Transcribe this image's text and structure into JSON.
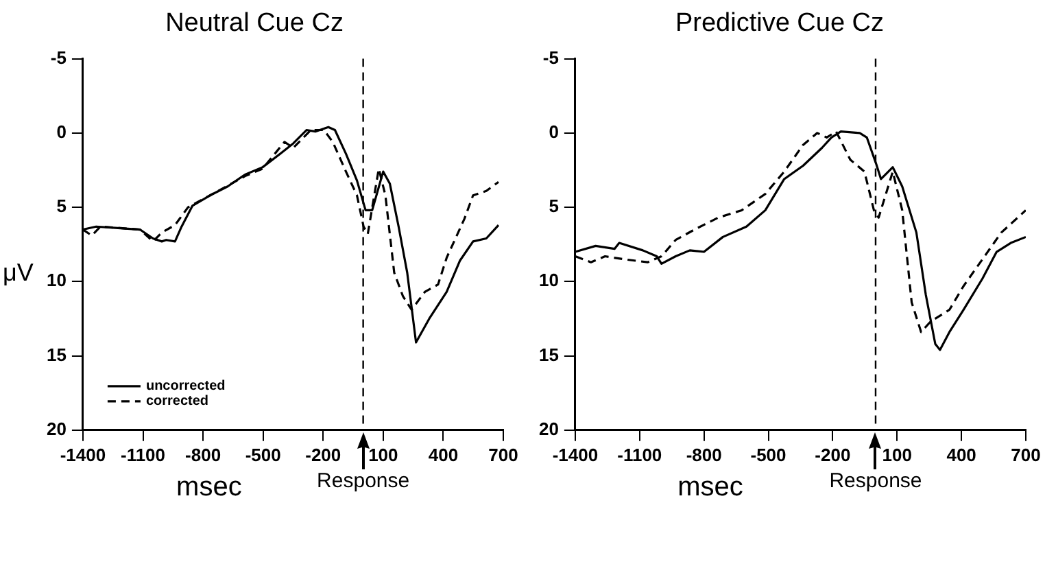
{
  "chart_data": [
    {
      "type": "line",
      "title": "Neutral Cue Cz",
      "xlabel": "msec",
      "ylabel": "μV",
      "xlim": [
        -1400,
        700
      ],
      "xticks": [
        -1400,
        -1100,
        -800,
        -500,
        -200,
        100,
        400,
        700
      ],
      "ylim": [
        20,
        -5
      ],
      "yticks": [
        -5,
        0,
        5,
        10,
        15,
        20
      ],
      "grid": false,
      "marker": "none",
      "legend": "bottom left",
      "ref_lines": [
        {
          "axis": "x",
          "value": 0,
          "label": "Response",
          "line_style": "dashed",
          "color": "#000000"
        }
      ],
      "series": [
        {
          "name": "uncorrected",
          "color": "#000000",
          "line_style": "solid",
          "x": [
            -1400,
            -1334,
            -1225,
            -1115,
            -1050,
            -1006,
            -984,
            -940,
            -907,
            -853,
            -765,
            -677,
            -590,
            -502,
            -415,
            -349,
            -283,
            -239,
            -174,
            -141,
            -86,
            -31,
            12,
            45,
            100,
            133,
            177,
            220,
            264,
            330,
            417,
            483,
            549,
            615,
            676
          ],
          "values": [
            6.5,
            6.3,
            6.4,
            6.5,
            7.1,
            7.3,
            7.2,
            7.3,
            6.3,
            4.9,
            4.2,
            3.6,
            2.8,
            2.3,
            1.4,
            0.7,
            -0.2,
            -0.1,
            -0.4,
            -0.2,
            1.4,
            3.2,
            5.2,
            5.2,
            2.6,
            3.4,
            6.3,
            9.4,
            14.1,
            12.5,
            10.7,
            8.6,
            7.3,
            7.1,
            6.2
          ]
        },
        {
          "name": "corrected",
          "color": "#000000",
          "line_style": "dashed",
          "x": [
            -1400,
            -1356,
            -1312,
            -1115,
            -1050,
            -1006,
            -940,
            -875,
            -765,
            -590,
            -502,
            -393,
            -349,
            -261,
            -196,
            -152,
            -86,
            -31,
            2,
            23,
            78,
            111,
            155,
            199,
            242,
            308,
            374,
            417,
            505,
            549,
            615,
            676
          ],
          "values": [
            6.5,
            6.9,
            6.3,
            6.5,
            7.3,
            6.7,
            6.2,
            5.0,
            4.2,
            2.9,
            2.4,
            0.6,
            1.0,
            -0.2,
            -0.2,
            0.6,
            2.6,
            4.2,
            6.3,
            6.8,
            2.4,
            4.2,
            9.4,
            11.0,
            11.9,
            10.7,
            10.2,
            8.4,
            5.8,
            4.2,
            3.9,
            3.3
          ]
        }
      ]
    },
    {
      "type": "line",
      "title": "Predictive Cue Cz",
      "xlabel": "msec",
      "xlim": [
        -1400,
        700
      ],
      "xticks": [
        -1400,
        -1100,
        -800,
        -500,
        -200,
        100,
        400,
        700
      ],
      "ylim": [
        20,
        -5
      ],
      "yticks": [
        -5,
        0,
        5,
        10,
        15,
        20
      ],
      "grid": false,
      "marker": "none",
      "ref_lines": [
        {
          "axis": "x",
          "value": 0,
          "label": "Response",
          "line_style": "dashed",
          "color": "#000000"
        }
      ],
      "series": [
        {
          "color": "#000000",
          "line_style": "solid",
          "x": [
            -1400,
            -1305,
            -1217,
            -1195,
            -1085,
            -1020,
            -998,
            -932,
            -866,
            -800,
            -712,
            -602,
            -514,
            -426,
            -338,
            -250,
            -206,
            -162,
            -74,
            -41,
            3,
            25,
            80,
            124,
            190,
            234,
            278,
            300,
            344,
            410,
            498,
            564,
            630,
            700
          ],
          "values": [
            8.0,
            7.6,
            7.8,
            7.4,
            7.9,
            8.3,
            8.8,
            8.3,
            7.9,
            8.0,
            7.0,
            6.3,
            5.2,
            3.1,
            2.2,
            1.0,
            0.3,
            -0.1,
            0,
            0.3,
            2.1,
            3.1,
            2.3,
            3.6,
            6.7,
            10.9,
            14.2,
            14.6,
            13.4,
            11.9,
            9.8,
            8.0,
            7.4,
            7.0
          ]
        },
        {
          "color": "#000000",
          "line_style": "dashed",
          "x": [
            -1400,
            -1327,
            -1261,
            -1173,
            -1063,
            -998,
            -932,
            -844,
            -734,
            -624,
            -514,
            -426,
            -338,
            -272,
            -228,
            -184,
            -118,
            -52,
            -8,
            14,
            80,
            124,
            168,
            212,
            256,
            344,
            410,
            498,
            586,
            700
          ],
          "values": [
            8.3,
            8.7,
            8.3,
            8.5,
            8.7,
            8.3,
            7.2,
            6.5,
            5.7,
            5.2,
            4.1,
            2.6,
            0.8,
            0,
            0.3,
            -0.1,
            1.8,
            2.6,
            5.2,
            5.7,
            2.6,
            5.2,
            11.4,
            13.4,
            12.7,
            11.9,
            10.3,
            8.5,
            6.7,
            5.2
          ]
        }
      ]
    }
  ]
}
